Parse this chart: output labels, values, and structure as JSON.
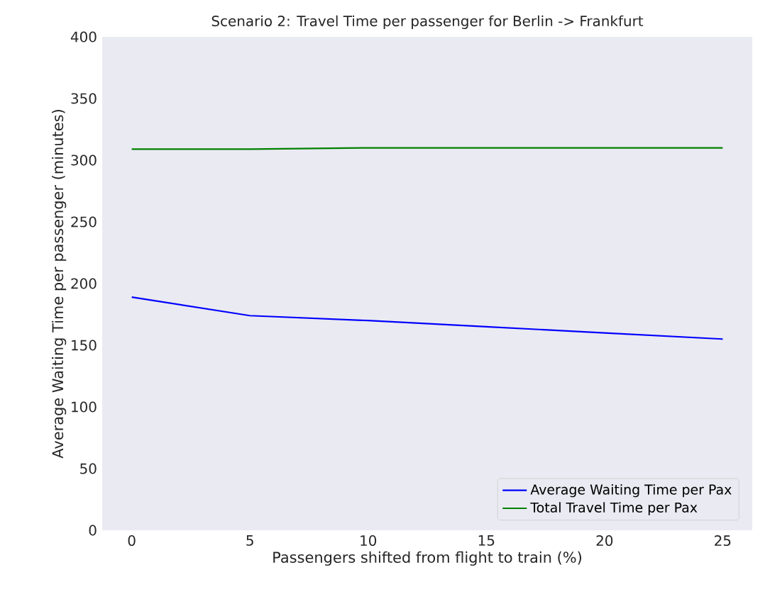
{
  "chart_data": {
    "type": "line",
    "title": "Scenario 2: Travel Time per passenger for Berlin -> Frankfurt",
    "xlabel": "Passengers shifted from flight to train (%)",
    "ylabel": "Average Waiting Time per passenger (minutes)",
    "x": [
      0,
      5,
      10,
      15,
      20,
      25
    ],
    "series": [
      {
        "name": "Average Waiting Time per Pax",
        "color": "#0000ff",
        "values": [
          189,
          174,
          170,
          165,
          160,
          155
        ]
      },
      {
        "name": "Total Travel Time per Pax",
        "color": "#008000",
        "values": [
          309,
          309,
          310,
          310,
          310,
          310
        ]
      }
    ],
    "xlim": [
      -1.25,
      26.25
    ],
    "ylim": [
      0,
      400
    ],
    "xticks": [
      0,
      5,
      10,
      15,
      20,
      25
    ],
    "yticks": [
      0,
      50,
      100,
      150,
      200,
      250,
      300,
      350,
      400
    ],
    "grid": false,
    "legend": "bottom right",
    "marker": "none",
    "line_style": "solid"
  }
}
